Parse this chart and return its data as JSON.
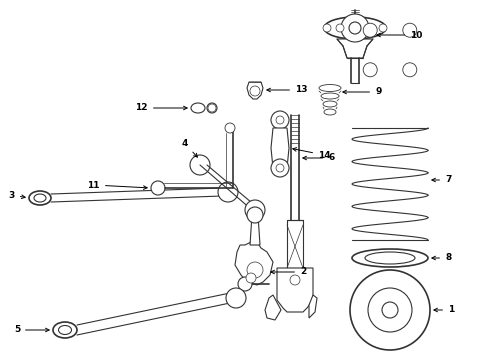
{
  "background_color": "#ffffff",
  "line_color": "#333333",
  "figsize": [
    4.9,
    3.6
  ],
  "dpi": 100
}
